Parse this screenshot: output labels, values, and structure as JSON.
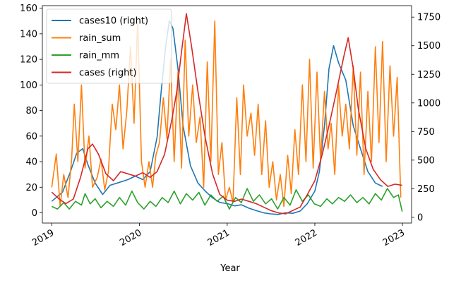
{
  "chart_data": {
    "type": "line",
    "title": "",
    "xlabel": "Year",
    "ylabel": "",
    "y2label": "",
    "xlim": [
      "2018-11-23",
      "2023-02-08"
    ],
    "x_ticks": [
      "2019-01-01",
      "2020-01-01",
      "2021-01-01",
      "2022-01-01",
      "2023-01-01"
    ],
    "x_tick_labels": [
      "2019",
      "2020",
      "2021",
      "2022",
      "2023"
    ],
    "ylim": [
      -8,
      162
    ],
    "y_ticks": [
      0,
      20,
      40,
      60,
      80,
      100,
      120,
      140,
      160
    ],
    "y2lim": [
      -50,
      1850
    ],
    "y2_ticks": [
      0,
      250,
      500,
      750,
      1000,
      1250,
      1500,
      1750
    ],
    "grid": false,
    "legend_position": "top-left",
    "series": [
      {
        "name": "cases10 (right)",
        "axis": "right",
        "color": "#1f77b4",
        "points": [
          [
            "2019-01-01",
            140
          ],
          [
            "2019-02-15",
            220
          ],
          [
            "2019-03-20",
            400
          ],
          [
            "2019-04-15",
            560
          ],
          [
            "2019-05-10",
            600
          ],
          [
            "2019-06-01",
            460
          ],
          [
            "2019-07-01",
            300
          ],
          [
            "2019-08-01",
            200
          ],
          [
            "2019-09-01",
            280
          ],
          [
            "2019-10-01",
            300
          ],
          [
            "2019-11-15",
            330
          ],
          [
            "2019-12-15",
            360
          ],
          [
            "2020-01-15",
            330
          ],
          [
            "2020-02-15",
            400
          ],
          [
            "2020-03-15",
            700
          ],
          [
            "2020-04-01",
            1100
          ],
          [
            "2020-04-20",
            1500
          ],
          [
            "2020-05-05",
            1720
          ],
          [
            "2020-05-20",
            1650
          ],
          [
            "2020-06-10",
            1300
          ],
          [
            "2020-07-01",
            800
          ],
          [
            "2020-08-01",
            450
          ],
          [
            "2020-09-01",
            300
          ],
          [
            "2020-10-01",
            230
          ],
          [
            "2020-11-01",
            170
          ],
          [
            "2020-12-01",
            130
          ],
          [
            "2021-01-01",
            120
          ],
          [
            "2021-02-01",
            100
          ],
          [
            "2021-03-01",
            110
          ],
          [
            "2021-04-01",
            80
          ],
          [
            "2021-05-01",
            60
          ],
          [
            "2021-06-01",
            40
          ],
          [
            "2021-07-01",
            30
          ],
          [
            "2021-08-01",
            25
          ],
          [
            "2021-09-01",
            40
          ],
          [
            "2021-10-01",
            35
          ],
          [
            "2021-11-01",
            55
          ],
          [
            "2021-12-01",
            120
          ],
          [
            "2022-01-01",
            230
          ],
          [
            "2022-01-20",
            400
          ],
          [
            "2022-02-10",
            800
          ],
          [
            "2022-03-01",
            1300
          ],
          [
            "2022-03-20",
            1500
          ],
          [
            "2022-04-10",
            1350
          ],
          [
            "2022-05-10",
            1200
          ],
          [
            "2022-06-10",
            800
          ],
          [
            "2022-07-10",
            600
          ],
          [
            "2022-08-10",
            400
          ],
          [
            "2022-09-10",
            300
          ],
          [
            "2022-10-10",
            270
          ]
        ]
      },
      {
        "name": "rain_sum",
        "axis": "left",
        "color": "#ff7f0e",
        "points": [
          [
            "2019-01-01",
            20
          ],
          [
            "2019-01-20",
            46
          ],
          [
            "2019-02-05",
            5
          ],
          [
            "2019-02-20",
            30
          ],
          [
            "2019-03-10",
            12
          ],
          [
            "2019-03-25",
            42
          ],
          [
            "2019-04-05",
            85
          ],
          [
            "2019-04-20",
            40
          ],
          [
            "2019-05-05",
            100
          ],
          [
            "2019-05-20",
            35
          ],
          [
            "2019-06-05",
            60
          ],
          [
            "2019-06-20",
            20
          ],
          [
            "2019-07-10",
            28
          ],
          [
            "2019-07-25",
            42
          ],
          [
            "2019-08-10",
            18
          ],
          [
            "2019-08-25",
            32
          ],
          [
            "2019-09-10",
            85
          ],
          [
            "2019-09-25",
            65
          ],
          [
            "2019-10-10",
            100
          ],
          [
            "2019-10-25",
            50
          ],
          [
            "2019-11-10",
            80
          ],
          [
            "2019-11-25",
            130
          ],
          [
            "2019-12-10",
            70
          ],
          [
            "2019-12-25",
            150
          ],
          [
            "2020-01-10",
            40
          ],
          [
            "2020-01-25",
            20
          ],
          [
            "2020-02-10",
            40
          ],
          [
            "2020-02-25",
            20
          ],
          [
            "2020-03-10",
            45
          ],
          [
            "2020-03-25",
            55
          ],
          [
            "2020-04-10",
            90
          ],
          [
            "2020-04-25",
            58
          ],
          [
            "2020-05-10",
            120
          ],
          [
            "2020-05-25",
            40
          ],
          [
            "2020-06-10",
            110
          ],
          [
            "2020-06-25",
            35
          ],
          [
            "2020-07-10",
            135
          ],
          [
            "2020-07-25",
            60
          ],
          [
            "2020-08-10",
            100
          ],
          [
            "2020-08-25",
            55
          ],
          [
            "2020-09-10",
            75
          ],
          [
            "2020-09-25",
            20
          ],
          [
            "2020-10-10",
            118
          ],
          [
            "2020-10-25",
            40
          ],
          [
            "2020-11-10",
            150
          ],
          [
            "2020-11-25",
            30
          ],
          [
            "2020-12-10",
            55
          ],
          [
            "2020-12-25",
            10
          ],
          [
            "2021-01-10",
            20
          ],
          [
            "2021-01-25",
            8
          ],
          [
            "2021-02-10",
            90
          ],
          [
            "2021-02-25",
            30
          ],
          [
            "2021-03-10",
            100
          ],
          [
            "2021-03-25",
            60
          ],
          [
            "2021-04-10",
            78
          ],
          [
            "2021-04-25",
            45
          ],
          [
            "2021-05-10",
            85
          ],
          [
            "2021-05-25",
            30
          ],
          [
            "2021-06-10",
            72
          ],
          [
            "2021-06-25",
            20
          ],
          [
            "2021-07-10",
            40
          ],
          [
            "2021-07-25",
            10
          ],
          [
            "2021-08-10",
            30
          ],
          [
            "2021-08-25",
            5
          ],
          [
            "2021-09-10",
            45
          ],
          [
            "2021-09-25",
            15
          ],
          [
            "2021-10-10",
            65
          ],
          [
            "2021-10-25",
            30
          ],
          [
            "2021-11-10",
            100
          ],
          [
            "2021-11-25",
            40
          ],
          [
            "2021-12-10",
            120
          ],
          [
            "2021-12-25",
            35
          ],
          [
            "2022-01-10",
            110
          ],
          [
            "2022-01-25",
            40
          ],
          [
            "2022-02-10",
            95
          ],
          [
            "2022-02-25",
            50
          ],
          [
            "2022-03-10",
            70
          ],
          [
            "2022-03-25",
            30
          ],
          [
            "2022-04-10",
            100
          ],
          [
            "2022-04-25",
            60
          ],
          [
            "2022-05-10",
            85
          ],
          [
            "2022-05-25",
            50
          ],
          [
            "2022-06-10",
            115
          ],
          [
            "2022-06-25",
            45
          ],
          [
            "2022-07-10",
            110
          ],
          [
            "2022-07-25",
            30
          ],
          [
            "2022-08-10",
            95
          ],
          [
            "2022-08-25",
            40
          ],
          [
            "2022-09-10",
            130
          ],
          [
            "2022-09-25",
            55
          ],
          [
            "2022-10-10",
            134
          ],
          [
            "2022-10-25",
            40
          ],
          [
            "2022-11-10",
            115
          ],
          [
            "2022-11-25",
            60
          ],
          [
            "2022-12-10",
            106
          ],
          [
            "2022-12-25",
            12
          ]
        ]
      },
      {
        "name": "rain_mm",
        "axis": "left",
        "color": "#2ca02c",
        "points": [
          [
            "2019-01-01",
            5
          ],
          [
            "2019-01-25",
            3
          ],
          [
            "2019-02-20",
            8
          ],
          [
            "2019-03-15",
            3
          ],
          [
            "2019-04-10",
            9
          ],
          [
            "2019-05-05",
            6
          ],
          [
            "2019-05-20",
            15
          ],
          [
            "2019-06-10",
            7
          ],
          [
            "2019-07-01",
            11
          ],
          [
            "2019-07-25",
            4
          ],
          [
            "2019-08-20",
            9
          ],
          [
            "2019-09-15",
            5
          ],
          [
            "2019-10-10",
            12
          ],
          [
            "2019-11-05",
            6
          ],
          [
            "2019-12-01",
            17
          ],
          [
            "2019-12-25",
            8
          ],
          [
            "2020-01-20",
            3
          ],
          [
            "2020-02-15",
            9
          ],
          [
            "2020-03-10",
            5
          ],
          [
            "2020-04-05",
            12
          ],
          [
            "2020-04-30",
            8
          ],
          [
            "2020-05-25",
            17
          ],
          [
            "2020-06-20",
            7
          ],
          [
            "2020-07-15",
            15
          ],
          [
            "2020-08-10",
            10
          ],
          [
            "2020-09-05",
            16
          ],
          [
            "2020-09-30",
            6
          ],
          [
            "2020-10-25",
            14
          ],
          [
            "2020-11-20",
            9
          ],
          [
            "2020-12-15",
            13
          ],
          [
            "2021-01-10",
            3
          ],
          [
            "2021-02-05",
            12
          ],
          [
            "2021-03-01",
            8
          ],
          [
            "2021-03-25",
            19
          ],
          [
            "2021-04-20",
            9
          ],
          [
            "2021-05-15",
            14
          ],
          [
            "2021-06-10",
            7
          ],
          [
            "2021-07-05",
            11
          ],
          [
            "2021-07-30",
            3
          ],
          [
            "2021-08-25",
            12
          ],
          [
            "2021-09-20",
            6
          ],
          [
            "2021-10-15",
            18
          ],
          [
            "2021-11-10",
            9
          ],
          [
            "2021-12-05",
            14
          ],
          [
            "2021-12-30",
            7
          ],
          [
            "2022-01-25",
            5
          ],
          [
            "2022-02-20",
            11
          ],
          [
            "2022-03-15",
            7
          ],
          [
            "2022-04-10",
            12
          ],
          [
            "2022-05-05",
            9
          ],
          [
            "2022-05-30",
            14
          ],
          [
            "2022-06-25",
            8
          ],
          [
            "2022-07-20",
            12
          ],
          [
            "2022-08-15",
            7
          ],
          [
            "2022-09-10",
            15
          ],
          [
            "2022-10-05",
            10
          ],
          [
            "2022-10-30",
            19
          ],
          [
            "2022-11-25",
            12
          ],
          [
            "2022-12-15",
            14
          ],
          [
            "2022-12-31",
            1
          ]
        ]
      },
      {
        "name": "cases (right)",
        "axis": "right",
        "color": "#d62728",
        "points": [
          [
            "2019-01-01",
            220
          ],
          [
            "2019-02-01",
            160
          ],
          [
            "2019-03-01",
            120
          ],
          [
            "2019-04-01",
            160
          ],
          [
            "2019-05-01",
            350
          ],
          [
            "2019-06-01",
            600
          ],
          [
            "2019-06-20",
            640
          ],
          [
            "2019-07-15",
            550
          ],
          [
            "2019-08-15",
            380
          ],
          [
            "2019-09-15",
            320
          ],
          [
            "2019-10-15",
            400
          ],
          [
            "2019-11-15",
            380
          ],
          [
            "2019-12-15",
            360
          ],
          [
            "2020-01-15",
            390
          ],
          [
            "2020-02-15",
            350
          ],
          [
            "2020-03-15",
            400
          ],
          [
            "2020-04-15",
            550
          ],
          [
            "2020-05-15",
            850
          ],
          [
            "2020-06-05",
            1100
          ],
          [
            "2020-06-25",
            1450
          ],
          [
            "2020-07-15",
            1780
          ],
          [
            "2020-08-05",
            1500
          ],
          [
            "2020-09-01",
            1100
          ],
          [
            "2020-10-01",
            700
          ],
          [
            "2020-11-01",
            380
          ],
          [
            "2020-12-01",
            200
          ],
          [
            "2021-01-01",
            150
          ],
          [
            "2021-02-01",
            140
          ],
          [
            "2021-03-01",
            160
          ],
          [
            "2021-04-01",
            140
          ],
          [
            "2021-05-01",
            120
          ],
          [
            "2021-06-01",
            90
          ],
          [
            "2021-07-01",
            60
          ],
          [
            "2021-08-01",
            40
          ],
          [
            "2021-09-01",
            30
          ],
          [
            "2021-10-01",
            60
          ],
          [
            "2021-11-01",
            90
          ],
          [
            "2021-12-01",
            200
          ],
          [
            "2022-01-01",
            320
          ],
          [
            "2022-02-01",
            550
          ],
          [
            "2022-03-01",
            800
          ],
          [
            "2022-04-01",
            1100
          ],
          [
            "2022-05-01",
            1400
          ],
          [
            "2022-05-20",
            1570
          ],
          [
            "2022-06-10",
            1300
          ],
          [
            "2022-07-01",
            950
          ],
          [
            "2022-08-01",
            600
          ],
          [
            "2022-09-01",
            420
          ],
          [
            "2022-10-01",
            330
          ],
          [
            "2022-11-01",
            270
          ],
          [
            "2022-12-01",
            290
          ],
          [
            "2022-12-31",
            280
          ]
        ]
      }
    ]
  }
}
